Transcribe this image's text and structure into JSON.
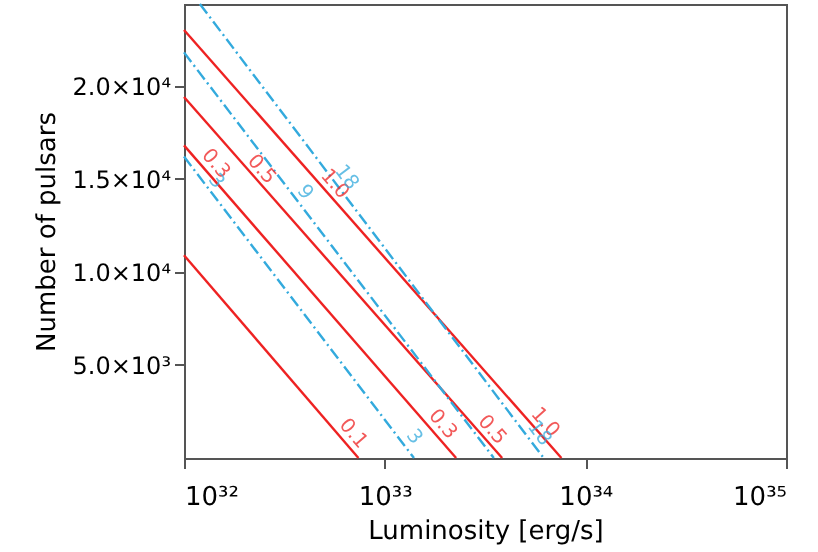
{
  "chart_data": {
    "type": "line",
    "xlabel": "Luminosity [erg/s]",
    "ylabel": "Number of pulsars",
    "log": "x",
    "grid": false,
    "xlim": [
      1e+32,
      1e+35
    ],
    "xticks": [
      {
        "value": 1e+32,
        "label": "10³²"
      },
      {
        "value": 1e+33,
        "label": "10³³"
      },
      {
        "value": 1e+34,
        "label": "10³⁴"
      },
      {
        "value": 1e+35,
        "label": "10³⁵"
      }
    ],
    "ylim": [
      0,
      24400
    ],
    "yticks": [
      {
        "value": 5000,
        "label": "5.0×10³"
      },
      {
        "value": 10000,
        "label": "1.0×10⁴"
      },
      {
        "value": 15000,
        "label": "1.5×10⁴"
      },
      {
        "value": 20000,
        "label": "2.0×10⁴"
      }
    ],
    "series": [
      {
        "color": "#ee2222",
        "line_style": "solid",
        "x": [
          1e+32,
          7.6e+33
        ],
        "values": [
          23000,
          0
        ]
      },
      {
        "color": "#ee2222",
        "line_style": "solid",
        "x": [
          1e+32,
          3.85e+33
        ],
        "values": [
          19400,
          0
        ]
      },
      {
        "color": "#ee2222",
        "line_style": "solid",
        "x": [
          1e+32,
          2.27e+33
        ],
        "values": [
          16800,
          0
        ]
      },
      {
        "color": "#ee2222",
        "line_style": "solid",
        "x": [
          1e+32,
          7.4e+32
        ],
        "values": [
          10900,
          0
        ]
      },
      {
        "color": "#33aadd",
        "line_style": "dashed",
        "x": [
          1.2e+32,
          6.2e+33
        ],
        "values": [
          24400,
          0
        ]
      },
      {
        "color": "#33aadd",
        "line_style": "dashed",
        "x": [
          1e+32,
          3.5e+33
        ],
        "values": [
          21800,
          0
        ]
      },
      {
        "color": "#33aadd",
        "line_style": "dashed",
        "x": [
          1e+32,
          1.4e+33
        ],
        "values": [
          16200,
          0
        ]
      }
    ],
    "annotations": [
      {
        "text": "1.0",
        "x": 5.1e+32,
        "y": 14300
      },
      {
        "text": "1.0",
        "x": 5.7e+33,
        "y": 1500
      },
      {
        "text": "0.5",
        "x": 2.2e+32,
        "y": 15100
      },
      {
        "text": "0.5",
        "x": 3.1e+33,
        "y": 1100
      },
      {
        "text": "0.3",
        "x": 1.3e+32,
        "y": 15400
      },
      {
        "text": "0.3",
        "x": 1.76e+33,
        "y": 1400
      },
      {
        "text": "0.1",
        "x": 6.3e+32,
        "y": 900
      },
      {
        "text": "18",
        "x": 5.8e+32,
        "y": 14700
      },
      {
        "text": "18",
        "x": 5.3e+33,
        "y": 950
      },
      {
        "text": "9",
        "x": 3.6e+32,
        "y": 13900
      },
      {
        "text": "3",
        "x": 1.3e+32,
        "y": 14500
      },
      {
        "text": "3",
        "x": 1.26e+33,
        "y": 750
      }
    ]
  }
}
